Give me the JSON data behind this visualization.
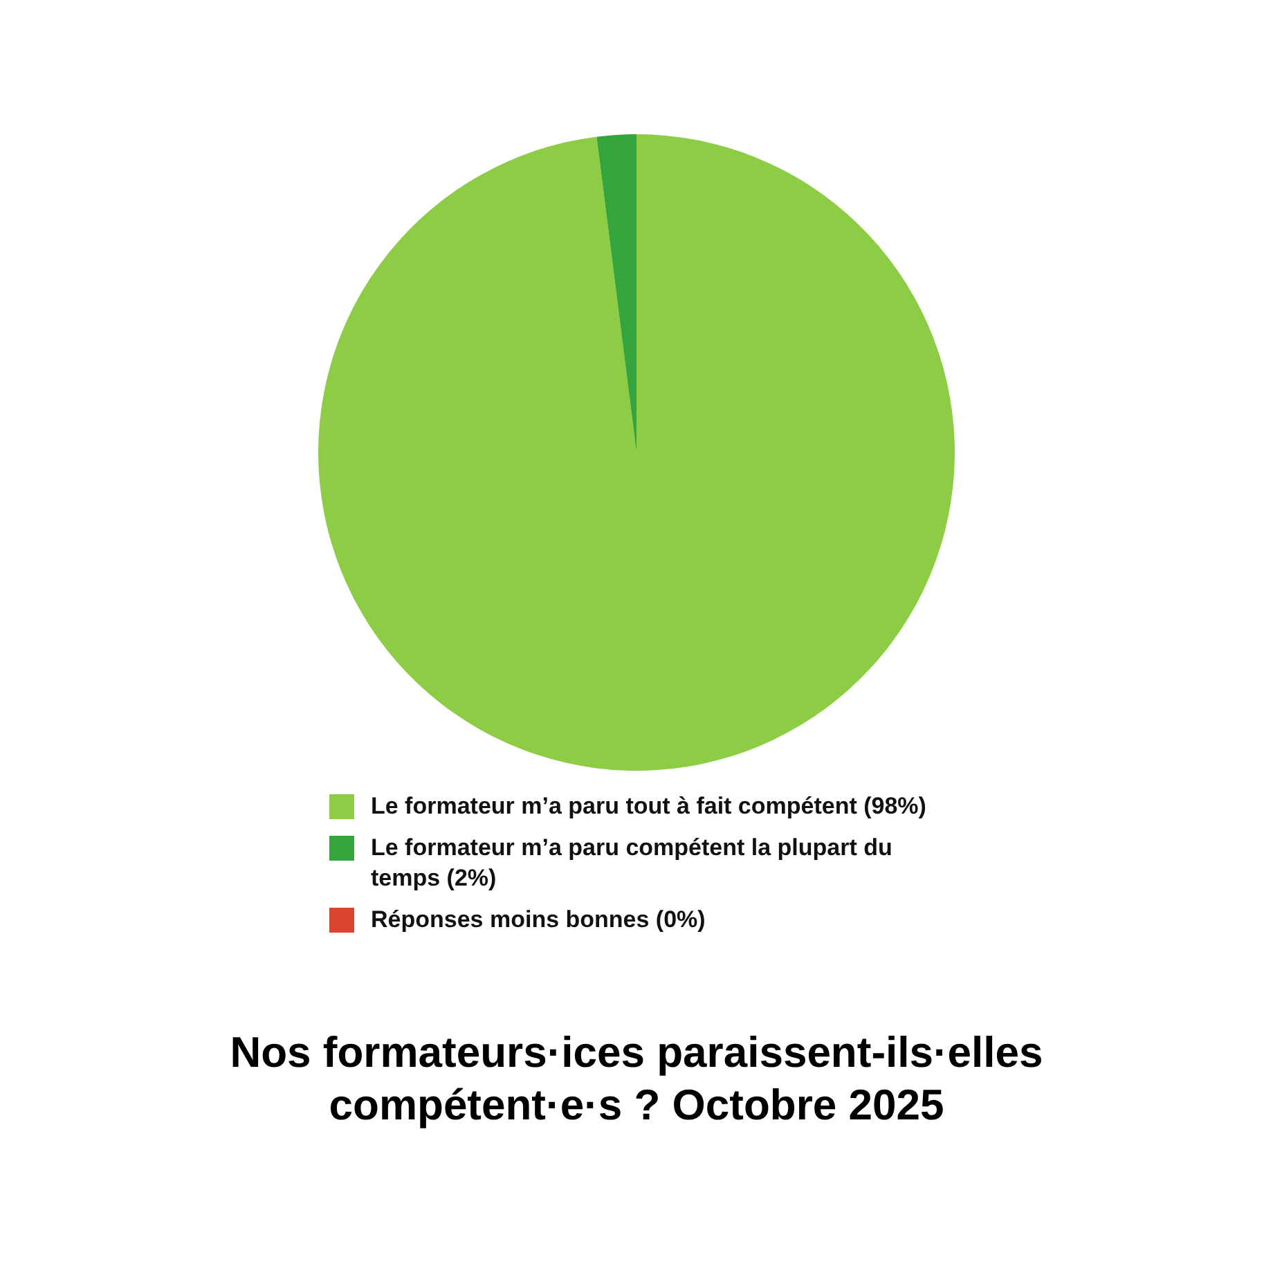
{
  "chart_data": {
    "type": "pie",
    "title": "Nos formateurs·ices paraissent-ils·elles compétent·e·s ?  Octobre 2025",
    "categories": [
      "Le formateur m’a paru tout à fait compétent (98%)",
      "Le formateur m’a paru compétent la plupart du temps (2%)",
      "Réponses moins bonnes (0%)"
    ],
    "values": [
      98,
      2,
      0
    ],
    "colors": [
      "#8dcc45",
      "#34a43c",
      "#d9432f"
    ],
    "legend": "bottom"
  }
}
